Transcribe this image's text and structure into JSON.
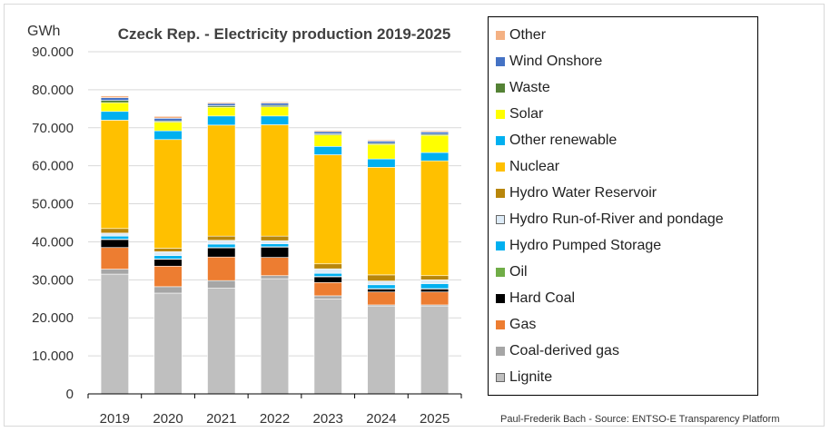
{
  "chart_data": {
    "type": "bar",
    "stacked": true,
    "title": "Czeck Rep. - Electricity production 2019-2025",
    "ylabel": "GWh",
    "xlabel": "",
    "ylim": [
      0,
      90000
    ],
    "yticks": [
      0,
      10000,
      20000,
      30000,
      40000,
      50000,
      60000,
      70000,
      80000,
      90000
    ],
    "ytick_labels": [
      "0",
      "10.000",
      "20.000",
      "30.000",
      "40.000",
      "50.000",
      "60.000",
      "70.000",
      "80.000",
      "90.000"
    ],
    "grid": true,
    "legend_position": "right",
    "categories": [
      "2019",
      "2020",
      "2021",
      "2022",
      "2023",
      "2024",
      "2025"
    ],
    "series": [
      {
        "name": "Lignite",
        "color": "#bfbfbf",
        "values": [
          31500,
          26500,
          27800,
          30300,
          25000,
          23000,
          23000
        ]
      },
      {
        "name": "Coal-derived gas",
        "color": "#a6a6a6",
        "values": [
          1300,
          1700,
          2000,
          800,
          800,
          400,
          400
        ]
      },
      {
        "name": "Gas",
        "color": "#ed7d31",
        "values": [
          5700,
          5400,
          6200,
          4800,
          3500,
          3400,
          3400
        ]
      },
      {
        "name": "Hard Coal",
        "color": "#000000",
        "values": [
          2100,
          1800,
          2400,
          2700,
          1500,
          800,
          800
        ]
      },
      {
        "name": "Oil",
        "color": "#70ad47",
        "values": [
          100,
          100,
          100,
          100,
          100,
          100,
          100
        ]
      },
      {
        "name": "Hydro Pumped Storage",
        "color": "#00b0f0",
        "values": [
          800,
          900,
          900,
          800,
          800,
          1000,
          1300
        ]
      },
      {
        "name": "Hydro Run-of-River and pondage",
        "color": "#ddebf7",
        "values": [
          800,
          1000,
          1000,
          800,
          1200,
          1000,
          1000
        ]
      },
      {
        "name": "Hydro Water Reservoir",
        "color": "#b8860b",
        "values": [
          1200,
          900,
          1100,
          1200,
          1300,
          1600,
          1100
        ]
      },
      {
        "name": "Nuclear",
        "color": "#ffc000",
        "values": [
          28500,
          28600,
          29200,
          29300,
          28700,
          28300,
          30200
        ]
      },
      {
        "name": "Other renewable",
        "color": "#00b0f0",
        "values": [
          2300,
          2300,
          2400,
          2300,
          2200,
          2200,
          2200
        ]
      },
      {
        "name": "Solar",
        "color": "#ffff00",
        "values": [
          2300,
          2300,
          2300,
          2400,
          3000,
          3800,
          4500
        ]
      },
      {
        "name": "Waste",
        "color": "#548235",
        "values": [
          600,
          300,
          400,
          400,
          300,
          300,
          300
        ]
      },
      {
        "name": "Wind Onshore",
        "color": "#4472c4",
        "values": [
          700,
          700,
          600,
          600,
          600,
          600,
          600
        ]
      },
      {
        "name": "Other",
        "color": "#f4b183",
        "values": [
          500,
          500,
          300,
          300,
          300,
          300,
          300
        ]
      }
    ],
    "legend_order": [
      "Other",
      "Wind Onshore",
      "Waste",
      "Solar",
      "Other renewable",
      "Nuclear",
      "Hydro Water Reservoir",
      "Hydro Run-of-River and pondage",
      "Hydro Pumped Storage",
      "Oil",
      "Hard Coal",
      "Gas",
      "Coal-derived gas",
      "Lignite"
    ]
  },
  "credit": "Paul-Frederik Bach - Source: ENTSO-E Transparency Platform"
}
